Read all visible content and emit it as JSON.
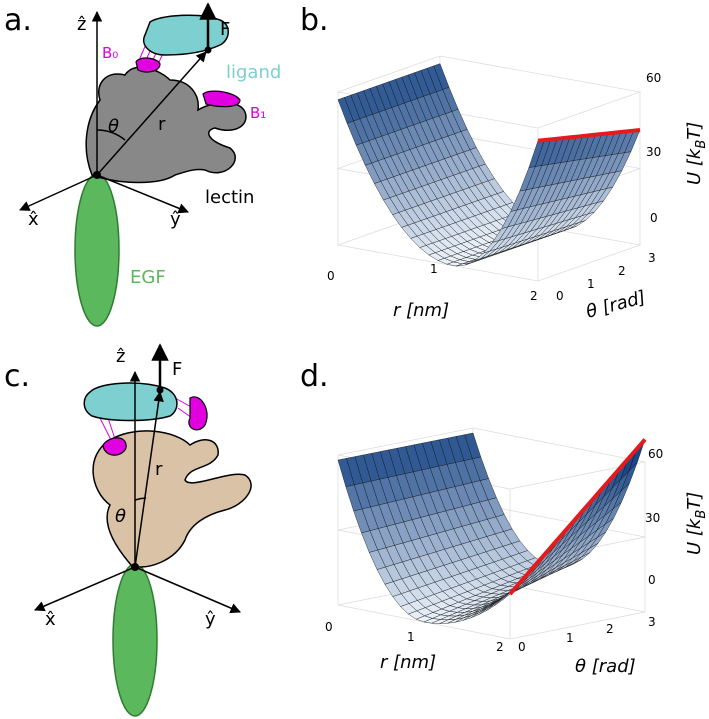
{
  "panels": [
    {
      "label": "a.",
      "diagram": {
        "z_axis": "ẑ",
        "force": "F",
        "bond_0": "B₀",
        "ligand": "ligand",
        "angle": "θ",
        "radius": "r",
        "bond_1": "B₁",
        "lectin": "lectin",
        "x_axis": "x̂",
        "y_axis": "ŷ",
        "domain": "EGF"
      }
    },
    {
      "label": "b.",
      "plot": {
        "x_label": "r [nm]",
        "x_ticks": [
          "0",
          "1",
          "2"
        ],
        "y_label": "θ [rad]",
        "y_ticks": [
          "0",
          "1",
          "2",
          "3"
        ],
        "z_label": {
          "prefix": "U [k",
          "sub": "B",
          "suffix": "T]"
        },
        "z_ticks": [
          "0",
          "30",
          "60"
        ]
      }
    },
    {
      "label": "c.",
      "diagram": {
        "z_axis": "ẑ",
        "force": "F",
        "angle": "θ",
        "radius": "r",
        "x_axis": "x̂",
        "y_axis": "ŷ"
      }
    },
    {
      "label": "d.",
      "plot": {
        "x_label": "r [nm]",
        "x_ticks": [
          "0",
          "1",
          "2"
        ],
        "y_label": "θ [rad]",
        "y_ticks": [
          "0",
          "1",
          "2",
          "3"
        ],
        "z_label": {
          "prefix": "U [k",
          "sub": "B",
          "suffix": "T]"
        },
        "z_ticks": [
          "0",
          "30",
          "60"
        ]
      }
    }
  ]
}
